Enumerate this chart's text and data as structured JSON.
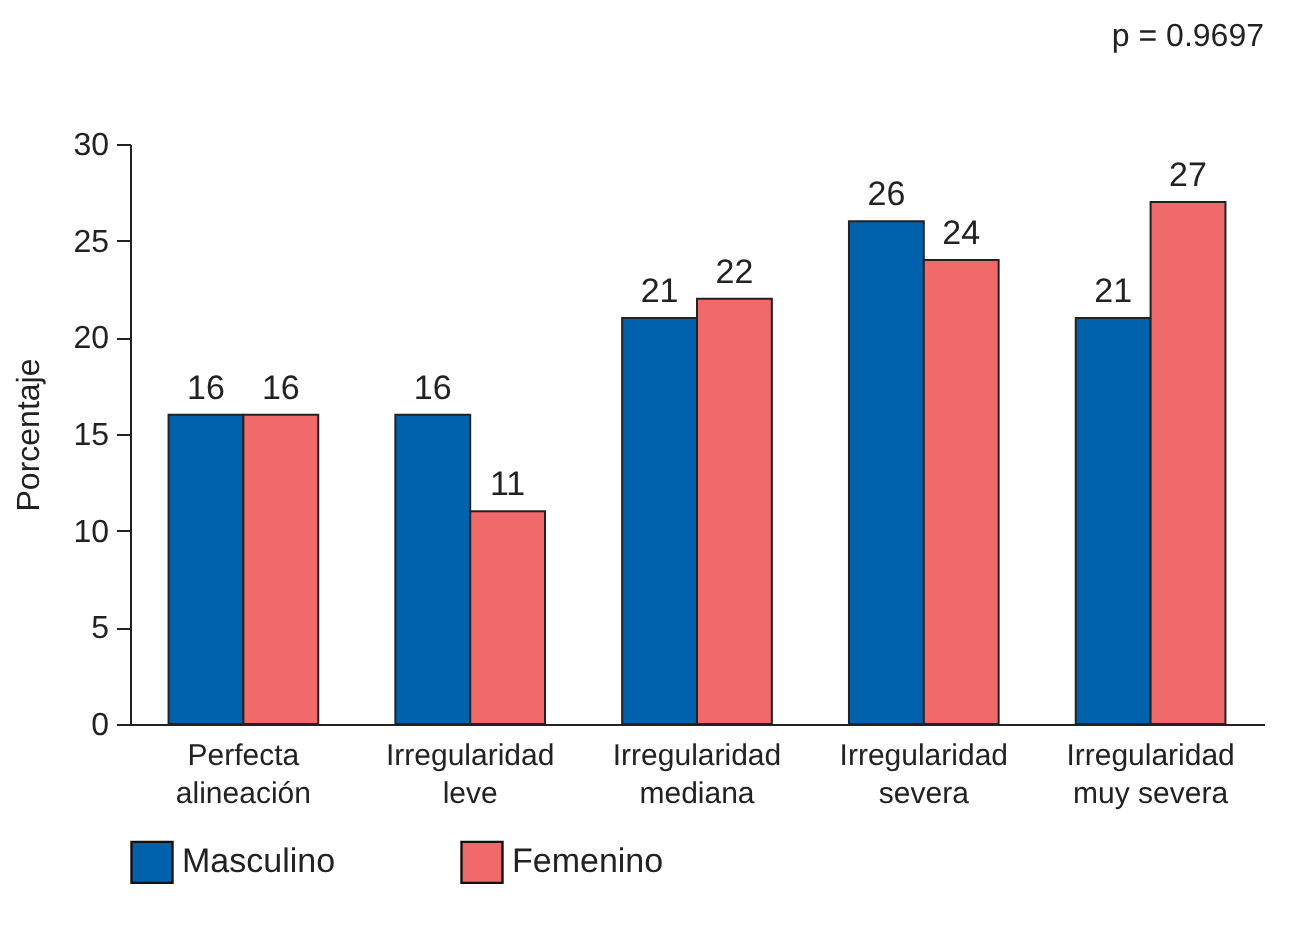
{
  "chart_data": {
    "type": "bar",
    "ylabel": "Porcentaje",
    "annotations": [
      "p = 0.9697"
    ],
    "categories": [
      "Perfecta alineación",
      "Irregularidad leve",
      "Irregularidad mediana",
      "Irregularidad severa",
      "Irregularidad muy severa"
    ],
    "series": [
      {
        "name": "Masculino",
        "color": "#0062ad",
        "values": [
          16,
          16,
          21,
          26,
          21
        ]
      },
      {
        "name": "Femenino",
        "color": "#f06a6c",
        "values": [
          16,
          11,
          22,
          24,
          27
        ]
      }
    ],
    "ylim": [
      0,
      30
    ],
    "yticks": [
      0,
      5,
      10,
      15,
      20,
      25,
      30
    ],
    "grid": false,
    "legend": "bottom",
    "data_labels": true
  }
}
